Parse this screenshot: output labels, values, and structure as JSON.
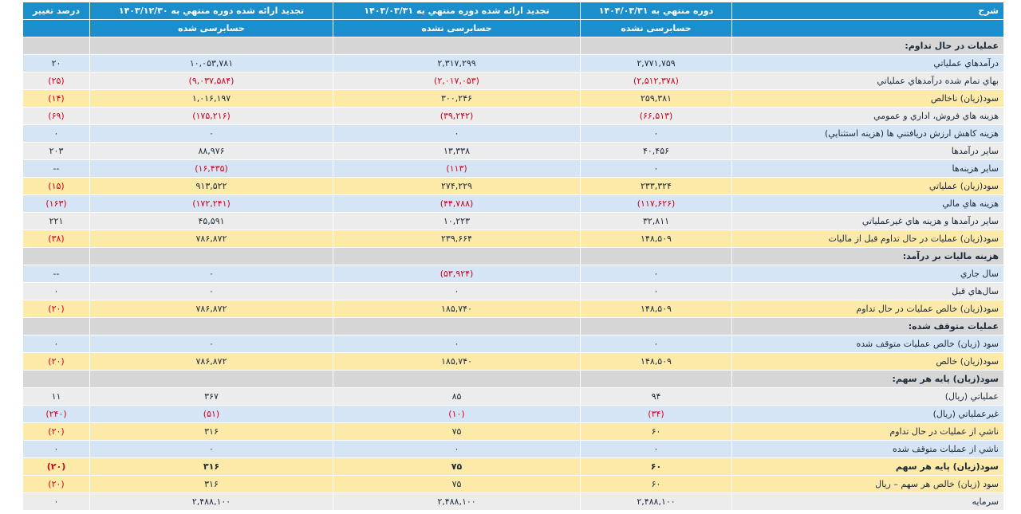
{
  "header": {
    "columns": [
      "شرح",
      "دوره منتهي به ۱۴۰۴/۰۳/۳۱",
      "تجدید ارائه شده دوره منتهي به ۱۴۰۳/۰۳/۳۱",
      "تجدید ارائه شده دوره منتهي به ۱۴۰۳/۱۲/۳۰",
      "درصد تغيير"
    ],
    "subcolumns": [
      "حسابرسی نشده",
      "حسابرسی نشده",
      "حسابرسی شده"
    ]
  },
  "table": {
    "rows": [
      [
        "عمليات در حال تداوم:"
      ],
      [
        "درآمدهاي عملياتي",
        "۲,۷۷۱,۷۵۹",
        "۲,۳۱۷,۲۹۹",
        "۱۰,۰۵۳,۷۸۱",
        "۲۰"
      ],
      [
        "بهاي تمام شده درآمدهاي عملياتي",
        "(۲,۵۱۲,۳۷۸)",
        "(۲,۰۱۷,۰۵۳)",
        "(۹,۰۳۷,۵۸۴)",
        "(۲۵)"
      ],
      [
        "سود(زيان) ناخالص",
        "۲۵۹,۳۸۱",
        "۳۰۰,۲۴۶",
        "۱,۰۱۶,۱۹۷",
        "(۱۴)"
      ],
      [
        "هزينه هاي فروش، اداري و عمومي",
        "(۶۶,۵۱۳)",
        "(۳۹,۲۴۲)",
        "(۱۷۵,۲۱۶)",
        "(۶۹)"
      ],
      [
        "هزينه کاهش ارزش دريافتني ها (هزينه استثنايي)",
        "۰",
        "۰",
        "۰",
        "۰"
      ],
      [
        "ساير درآمدها",
        "۴۰,۴۵۶",
        "۱۳,۳۳۸",
        "۸۸,۹۷۶",
        "۲۰۳"
      ],
      [
        "ساير هزينه‌ها",
        "۰",
        "(۱۱۳)",
        "(۱۶,۴۳۵)",
        "--"
      ],
      [
        "سود(زيان) عملياتي",
        "۲۳۳,۳۲۴",
        "۲۷۴,۲۲۹",
        "۹۱۳,۵۲۲",
        "(۱۵)"
      ],
      [
        "هزينه هاي مالي",
        "(۱۱۷,۶۲۶)",
        "(۴۴,۷۸۸)",
        "(۱۷۲,۲۴۱)",
        "(۱۶۳)"
      ],
      [
        "ساير درآمدها و هزينه هاي غيرعملياتي",
        "۳۲,۸۱۱",
        "۱۰,۲۲۳",
        "۴۵,۵۹۱",
        "۲۲۱"
      ],
      [
        "سود(زيان) عمليات در حال تداوم قبل از ماليات",
        "۱۴۸,۵۰۹",
        "۲۳۹,۶۶۴",
        "۷۸۶,۸۷۲",
        "(۳۸)"
      ],
      [
        "هزينه ماليات بر درآمد:"
      ],
      [
        "سال جاري",
        "۰",
        "(۵۳,۹۲۴)",
        "۰",
        "--"
      ],
      [
        "سال‌هاي قبل",
        "۰",
        "۰",
        "۰",
        "۰"
      ],
      [
        "سود(زيان) خالص عمليات در حال تداوم",
        "۱۴۸,۵۰۹",
        "۱۸۵,۷۴۰",
        "۷۸۶,۸۷۲",
        "(۲۰)"
      ],
      [
        "عمليات متوقف شده:"
      ],
      [
        "سود (زيان) خالص عمليات متوقف شده",
        "۰",
        "۰",
        "۰",
        "۰"
      ],
      [
        "سود(زيان) خالص",
        "۱۴۸,۵۰۹",
        "۱۸۵,۷۴۰",
        "۷۸۶,۸۷۲",
        "(۲۰)"
      ],
      [
        "سود(زيان) پايه هر سهم:"
      ],
      [
        "عملياتي (ريال)",
        "۹۴",
        "۸۵",
        "۳۶۷",
        "۱۱"
      ],
      [
        "غيرعملياتي (ريال)",
        "(۳۴)",
        "(۱۰)",
        "(۵۱)",
        "(۲۴۰)"
      ],
      [
        "ناشي از عمليات در حال تداوم",
        "۶۰",
        "۷۵",
        "۳۱۶",
        "(۲۰)"
      ],
      [
        "ناشي از عمليات متوقف شده",
        "۰",
        "۰",
        "۰",
        "۰"
      ],
      [
        "سود(زيان) پايه هر سهم",
        "۶۰",
        "۷۵",
        "۳۱۶",
        "(۲۰)"
      ],
      [
        "سود (زيان) خالص هر سهم – ريال",
        "۶۰",
        "۷۵",
        "۳۱۶",
        "(۲۰)"
      ],
      [
        "سرمايه",
        "۲,۴۸۸,۱۰۰",
        "۲,۴۸۸,۱۰۰",
        "۲,۴۸۸,۱۰۰",
        "۰"
      ]
    ]
  }
}
